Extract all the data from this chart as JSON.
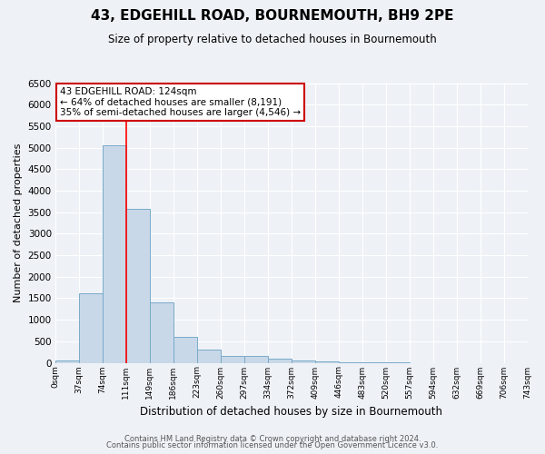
{
  "title": "43, EDGEHILL ROAD, BOURNEMOUTH, BH9 2PE",
  "subtitle": "Size of property relative to detached houses in Bournemouth",
  "xlabel": "Distribution of detached houses by size in Bournemouth",
  "ylabel": "Number of detached properties",
  "footnote1": "Contains HM Land Registry data © Crown copyright and database right 2024.",
  "footnote2": "Contains public sector information licensed under the Open Government Licence v3.0.",
  "bin_labels": [
    "0sqm",
    "37sqm",
    "74sqm",
    "111sqm",
    "149sqm",
    "186sqm",
    "223sqm",
    "260sqm",
    "297sqm",
    "334sqm",
    "372sqm",
    "409sqm",
    "446sqm",
    "483sqm",
    "520sqm",
    "557sqm",
    "594sqm",
    "632sqm",
    "669sqm",
    "706sqm",
    "743sqm"
  ],
  "bar_values": [
    55,
    1620,
    5060,
    3570,
    1410,
    600,
    300,
    155,
    150,
    95,
    55,
    35,
    8,
    2,
    1,
    0,
    0,
    0,
    0,
    0
  ],
  "bar_color": "#c8d8e8",
  "bar_edge_color": "#7aaac8",
  "ylim": [
    0,
    6500
  ],
  "yticks": [
    0,
    500,
    1000,
    1500,
    2000,
    2500,
    3000,
    3500,
    4000,
    4500,
    5000,
    5500,
    6000,
    6500
  ],
  "red_line_x": 3.0,
  "annotation_title": "43 EDGEHILL ROAD: 124sqm",
  "annotation_line1": "← 64% of detached houses are smaller (8,191)",
  "annotation_line2": "35% of semi-detached houses are larger (4,546) →",
  "annotation_box_color": "#ffffff",
  "annotation_border_color": "#cc0000",
  "background_color": "#eef2f7",
  "grid_color": "#ffffff"
}
